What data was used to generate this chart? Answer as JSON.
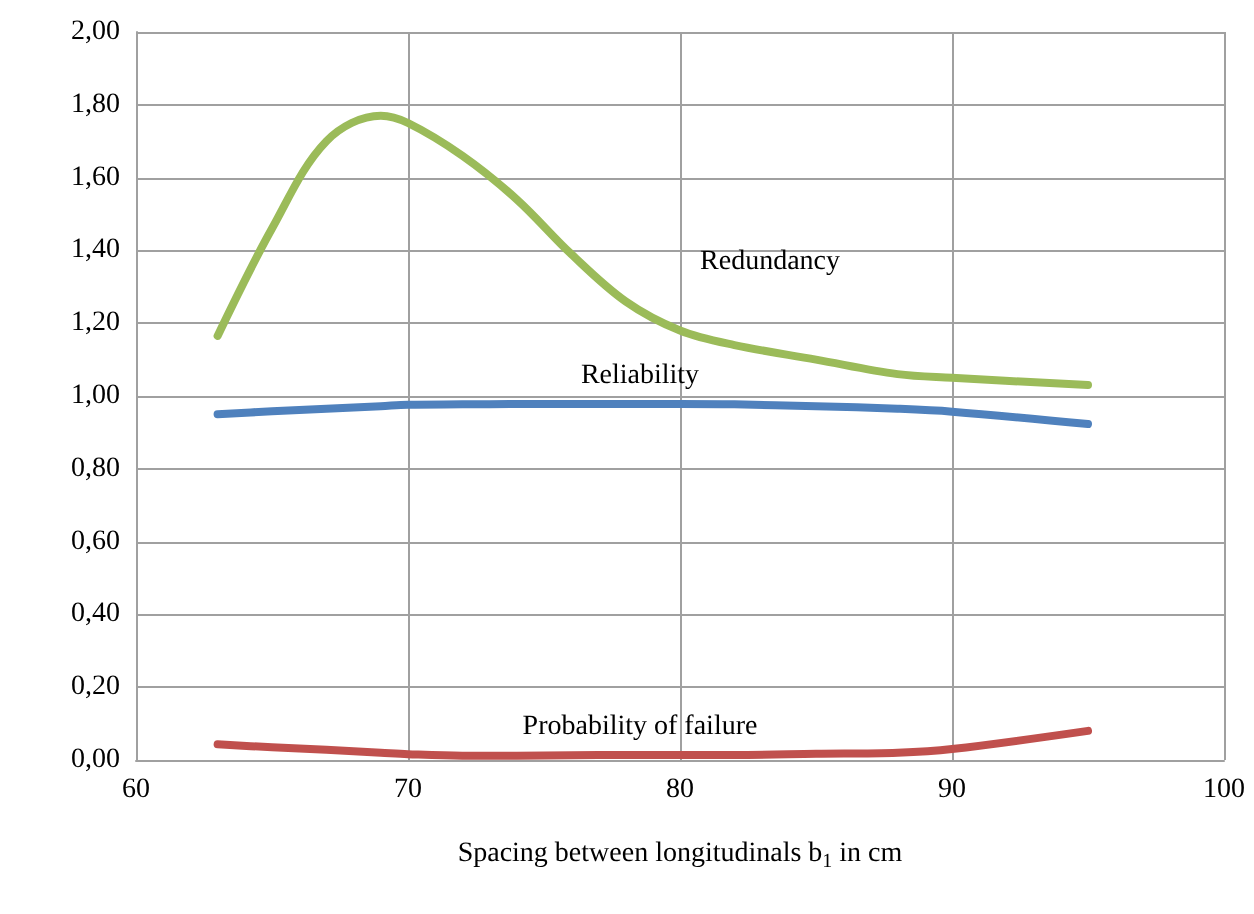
{
  "chart_data": {
    "type": "line",
    "xlabel": "Spacing between longitudinals b$_{1}$ in cm",
    "x": [
      63,
      65,
      67,
      69,
      70,
      72,
      74,
      76,
      78,
      80,
      82,
      85,
      88,
      90,
      95
    ],
    "series": [
      {
        "name": "Redundancy",
        "color": "#9bbb59",
        "values": [
          1.165,
          1.46,
          1.7,
          1.77,
          1.75,
          1.66,
          1.54,
          1.39,
          1.26,
          1.18,
          1.14,
          1.1,
          1.06,
          1.05,
          1.03
        ]
      },
      {
        "name": "Reliability",
        "color": "#4f81bd",
        "values": [
          0.95,
          0.958,
          0.965,
          0.972,
          0.976,
          0.977,
          0.978,
          0.978,
          0.978,
          0.978,
          0.977,
          0.972,
          0.965,
          0.957,
          0.923
        ]
      },
      {
        "name": "Probability of failure",
        "color": "#c0504d",
        "values": [
          0.043,
          0.035,
          0.028,
          0.02,
          0.016,
          0.012,
          0.012,
          0.013,
          0.014,
          0.014,
          0.014,
          0.017,
          0.02,
          0.03,
          0.08
        ]
      }
    ],
    "xlim": [
      60,
      100
    ],
    "xticks": [
      60,
      70,
      80,
      90,
      100
    ],
    "ylim": [
      0,
      2
    ],
    "yticks": [
      {
        "value": 0,
        "label": "0,00"
      },
      {
        "value": 0.2,
        "label": "0,20"
      },
      {
        "value": 0.4,
        "label": "0,40"
      },
      {
        "value": 0.6,
        "label": "0,60"
      },
      {
        "value": 0.8,
        "label": "0,80"
      },
      {
        "value": 1,
        "label": "1,00"
      },
      {
        "value": 1.2,
        "label": "1,20"
      },
      {
        "value": 1.4,
        "label": "1,40"
      },
      {
        "value": 1.6,
        "label": "1,60"
      },
      {
        "value": 1.8,
        "label": "1,80"
      },
      {
        "value": 2,
        "label": "2,00"
      }
    ],
    "grid": true,
    "legend": false,
    "marker": "none",
    "line_style": "solid"
  }
}
